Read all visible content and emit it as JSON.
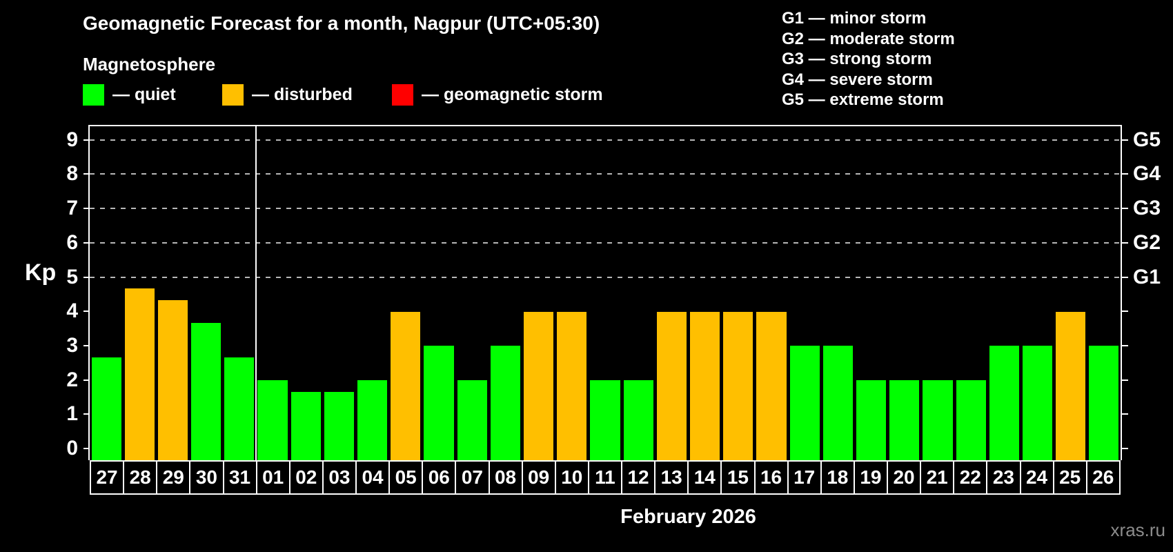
{
  "header": {
    "title": "Geomagnetic Forecast for a month, Nagpur (UTC+05:30)",
    "subtitle": "Magnetosphere"
  },
  "legend": {
    "items": [
      {
        "name": "quiet",
        "label": "— quiet",
        "color": "#00ff00"
      },
      {
        "name": "disturbed",
        "label": "— disturbed",
        "color": "#ffbf00"
      },
      {
        "name": "geomagnetic-storm",
        "label": "— geomagnetic storm",
        "color": "#ff0000"
      }
    ]
  },
  "storm_scale": {
    "lines": [
      "G1 — minor storm",
      "G2 — moderate storm",
      "G3 — strong storm",
      "G4 — severe storm",
      "G5 — extreme storm"
    ]
  },
  "footer": {
    "month_label": "February 2026",
    "watermark": "xras.ru"
  },
  "chart_data": {
    "type": "bar",
    "title": "Geomagnetic Forecast for a month, Nagpur (UTC+05:30)",
    "xlabel": "February 2026",
    "ylabel": "Kp",
    "ylim": [
      0,
      9
    ],
    "y_ticks": [
      0,
      1,
      2,
      3,
      4,
      5,
      6,
      7,
      8,
      9
    ],
    "gridlines_at": [
      5,
      6,
      7,
      8,
      9
    ],
    "grid": "dashed-horizontal",
    "legend_position": "top-left",
    "categories": [
      "27",
      "28",
      "29",
      "30",
      "31",
      "01",
      "02",
      "03",
      "04",
      "05",
      "06",
      "07",
      "08",
      "09",
      "10",
      "11",
      "12",
      "13",
      "14",
      "15",
      "16",
      "17",
      "18",
      "19",
      "20",
      "21",
      "22",
      "23",
      "24",
      "25",
      "26"
    ],
    "values": [
      2.67,
      4.67,
      4.33,
      3.67,
      2.67,
      2,
      1.67,
      1.67,
      2,
      4,
      3,
      2,
      3,
      4,
      4,
      2,
      2,
      4,
      4,
      4,
      4,
      3,
      3,
      2,
      2,
      2,
      2,
      3,
      3,
      4,
      3
    ],
    "statuses": [
      "quiet",
      "disturbed",
      "disturbed",
      "quiet",
      "quiet",
      "quiet",
      "quiet",
      "quiet",
      "quiet",
      "disturbed",
      "quiet",
      "quiet",
      "quiet",
      "disturbed",
      "disturbed",
      "quiet",
      "quiet",
      "disturbed",
      "disturbed",
      "disturbed",
      "disturbed",
      "quiet",
      "quiet",
      "quiet",
      "quiet",
      "quiet",
      "quiet",
      "quiet",
      "quiet",
      "disturbed",
      "quiet"
    ],
    "status_colors": {
      "quiet": "#00ff00",
      "disturbed": "#ffbf00",
      "storm": "#ff0000"
    },
    "right_axis_labels": [
      {
        "kp": 5,
        "label": "G1"
      },
      {
        "kp": 6,
        "label": "G2"
      },
      {
        "kp": 7,
        "label": "G3"
      },
      {
        "kp": 8,
        "label": "G4"
      },
      {
        "kp": 9,
        "label": "G5"
      }
    ],
    "month_separator_after": "31"
  }
}
